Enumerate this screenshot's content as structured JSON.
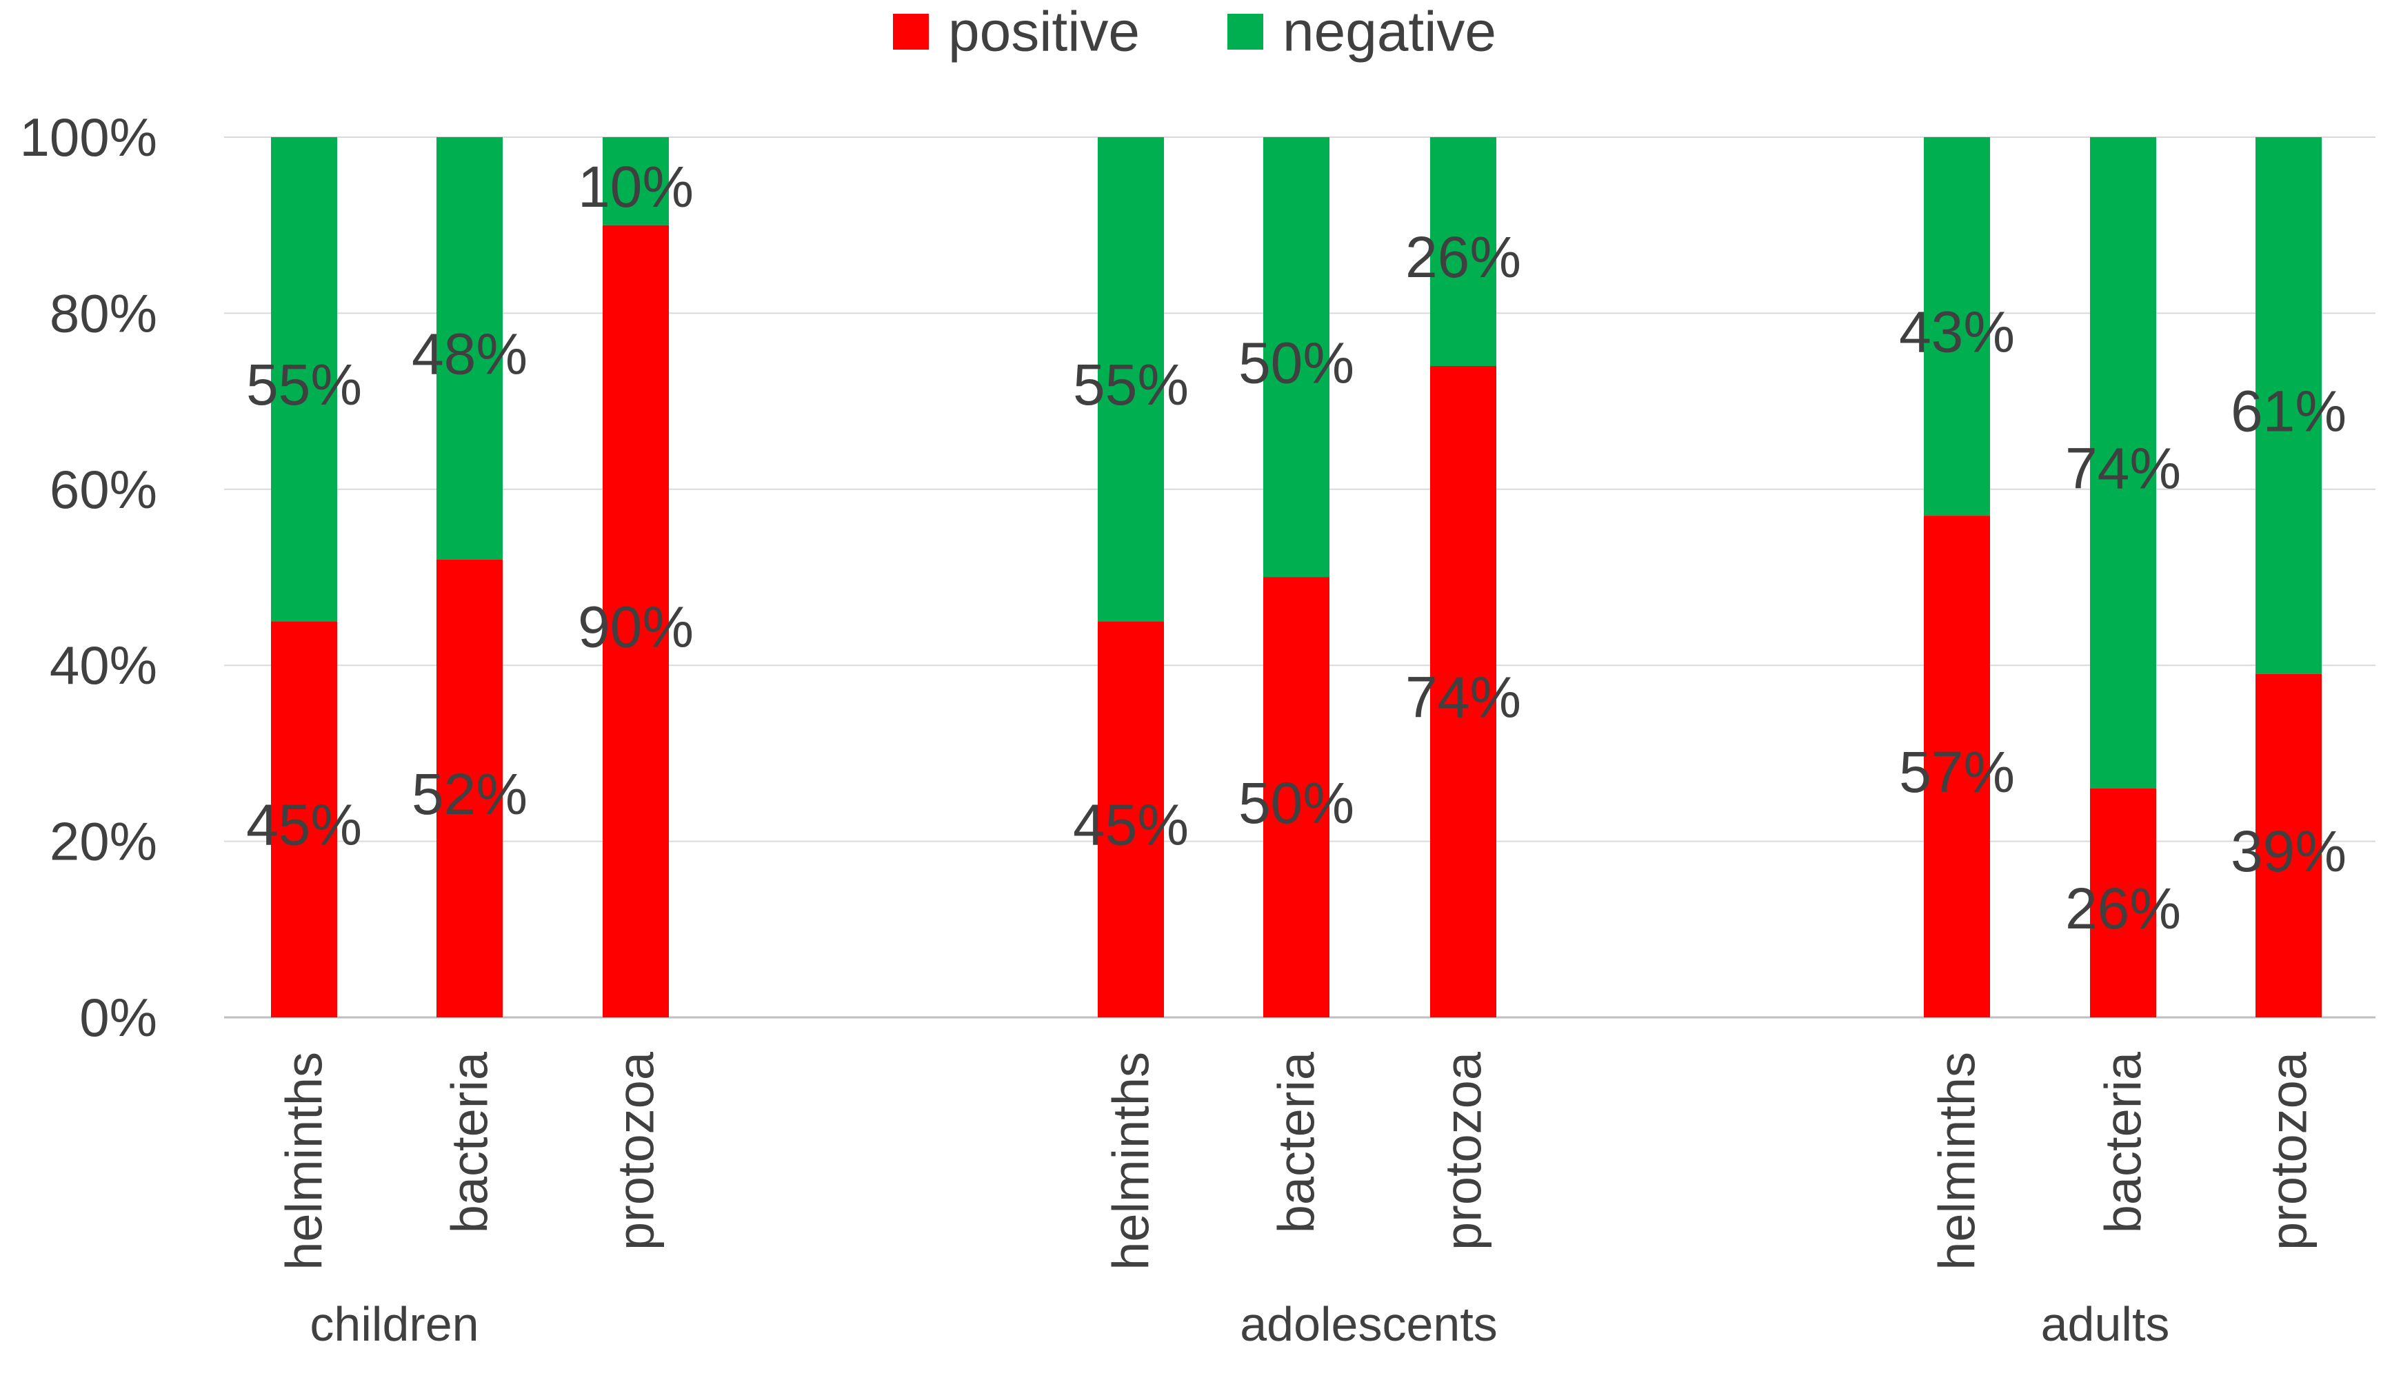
{
  "chart_data": {
    "type": "bar",
    "stacked": true,
    "percent_stacked": true,
    "title": "",
    "xlabel": "",
    "ylabel": "",
    "ylim": [
      0,
      100
    ],
    "yticks": [
      "0%",
      "20%",
      "40%",
      "60%",
      "80%",
      "100%"
    ],
    "grid": true,
    "legend": {
      "position": "top",
      "entries": [
        "positive",
        "negative"
      ]
    },
    "groups": [
      {
        "name": "children",
        "categories": [
          "helminths",
          "bacteria",
          "protozoa"
        ]
      },
      {
        "name": "adolescents",
        "categories": [
          "helminths",
          "bacteria",
          "protozoa"
        ]
      },
      {
        "name": "adults",
        "categories": [
          "helminths",
          "bacteria",
          "protozoa"
        ]
      }
    ],
    "series": [
      {
        "name": "positive",
        "color": "#FF0000",
        "values": [
          45,
          52,
          90,
          45,
          50,
          74,
          57,
          26,
          39
        ],
        "labels": [
          "45%",
          "52%",
          "90%",
          "45%",
          "50%",
          "74%",
          "57%",
          "26%",
          "39%"
        ]
      },
      {
        "name": "negative",
        "color": "#00B050",
        "values": [
          55,
          48,
          10,
          55,
          50,
          26,
          43,
          74,
          61
        ],
        "labels": [
          "55%",
          "48%",
          "10%",
          "55%",
          "50%",
          "26%",
          "43%",
          "74%",
          "61%"
        ]
      }
    ]
  }
}
